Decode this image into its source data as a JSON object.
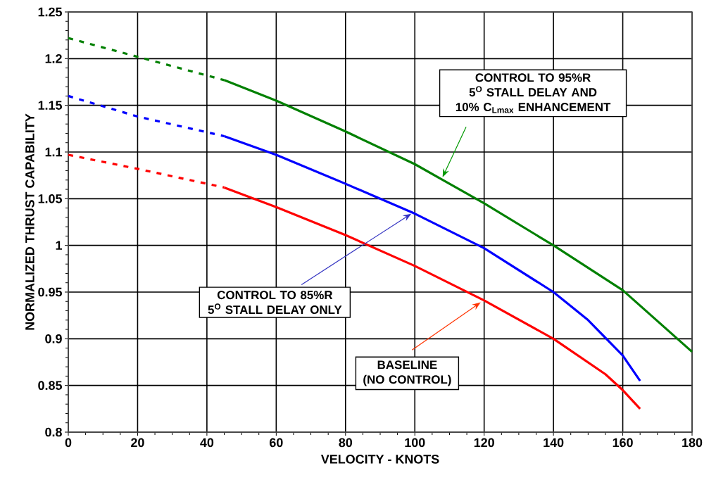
{
  "chart_data": {
    "type": "line",
    "xlabel": "VELOCITY - KNOTS",
    "ylabel": "NORMALIZED THRUST CAPABILITY",
    "xlim": [
      0,
      180
    ],
    "xticks": [
      0,
      20,
      40,
      60,
      80,
      100,
      120,
      140,
      160,
      180
    ],
    "ylim": [
      0.8,
      1.25
    ],
    "yticks": [
      0.8,
      0.85,
      0.9,
      0.95,
      1,
      1.05,
      1.1,
      1.15,
      1.2,
      1.25
    ],
    "grid": true,
    "marker": "none",
    "series": [
      {
        "color": "#008000",
        "line_style": "dashed",
        "x": [
          0,
          20,
          45
        ],
        "values": [
          1.222,
          1.202,
          1.177
        ]
      },
      {
        "color": "#008000",
        "line_style": "solid",
        "x": [
          45,
          60,
          80,
          100,
          120,
          140,
          160,
          180
        ],
        "values": [
          1.177,
          1.155,
          1.122,
          1.087,
          1.045,
          1.0,
          0.952,
          0.886
        ]
      },
      {
        "color": "#0000ff",
        "line_style": "dashed",
        "x": [
          0,
          20,
          45
        ],
        "values": [
          1.16,
          1.138,
          1.117
        ]
      },
      {
        "color": "#0000ff",
        "line_style": "solid",
        "x": [
          45,
          60,
          80,
          100,
          120,
          140,
          150,
          160,
          165
        ],
        "values": [
          1.117,
          1.097,
          1.066,
          1.034,
          0.997,
          0.95,
          0.92,
          0.882,
          0.855
        ]
      },
      {
        "color": "#ff0000",
        "line_style": "dashed",
        "x": [
          0,
          20,
          45
        ],
        "values": [
          1.097,
          1.082,
          1.062
        ]
      },
      {
        "color": "#ff0000",
        "line_style": "solid",
        "x": [
          45,
          60,
          80,
          100,
          120,
          140,
          155,
          160,
          165
        ],
        "values": [
          1.062,
          1.041,
          1.011,
          0.978,
          0.941,
          0.9,
          0.862,
          0.845,
          0.825
        ]
      }
    ],
    "annotations": [
      {
        "text": "CONTROL TO 95%R 5$^{O}$ STALL DELAY AND 10% C$_{Lmax}$ ENHANCEMENT",
        "x": 108,
        "y": 1.073
      },
      {
        "text": "CONTROL TO 85%R 5$^{O}$ STALL DELAY ONLY",
        "x": 99,
        "y": 1.034
      },
      {
        "text": "BASELINE (NO CONTROL)",
        "x": 119,
        "y": 0.939
      }
    ]
  }
}
